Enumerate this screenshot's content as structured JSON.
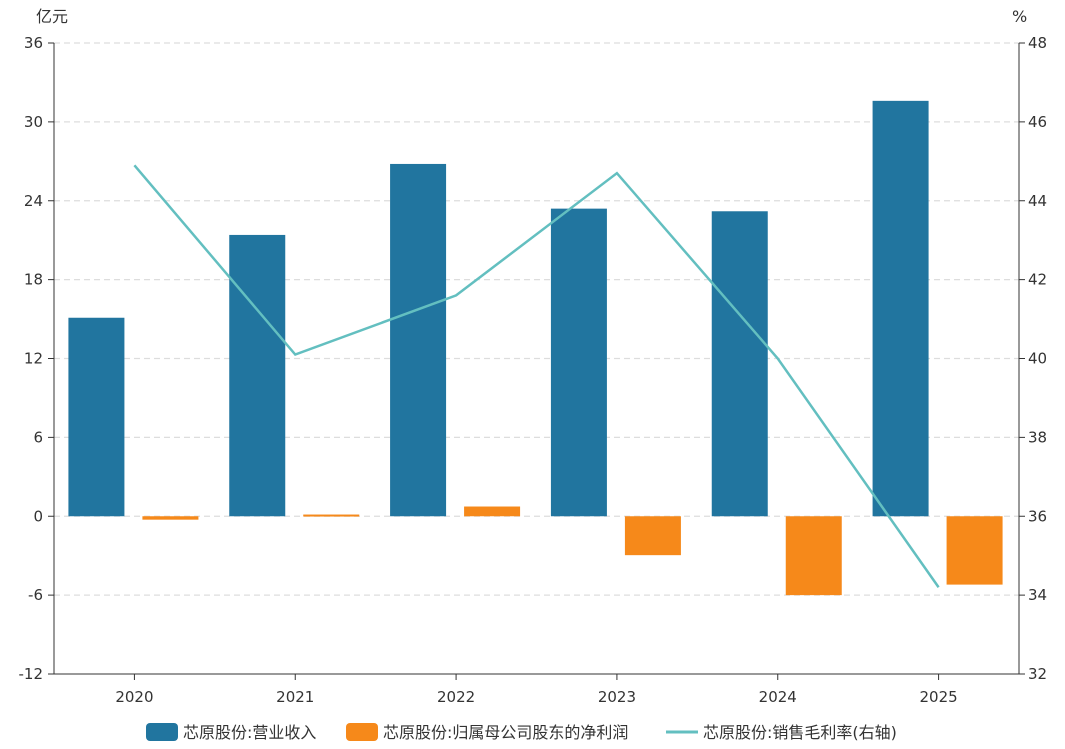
{
  "chart_data": {
    "type": "bar",
    "categories": [
      "2020",
      "2021",
      "2022",
      "2023",
      "2024",
      "2025"
    ],
    "left_axis": {
      "unit": "亿元",
      "ylim": [
        -12,
        36
      ],
      "ticks": [
        -12,
        -6,
        0,
        6,
        12,
        18,
        24,
        30,
        36
      ]
    },
    "right_axis": {
      "unit": "%",
      "ylim": [
        32,
        48
      ],
      "ticks": [
        32,
        34,
        36,
        38,
        40,
        42,
        44,
        46,
        48
      ]
    },
    "series": [
      {
        "name": "芯原股份:营业收入",
        "type": "bar",
        "axis": "left",
        "color": "#21759f",
        "values": [
          15.1,
          21.4,
          26.8,
          23.4,
          23.2,
          31.6
        ]
      },
      {
        "name": "芯原股份:归属母公司股东的净利润",
        "type": "bar",
        "axis": "left",
        "color": "#f6891a",
        "values": [
          -0.26,
          0.13,
          0.74,
          -2.96,
          -6.0,
          -5.2
        ]
      },
      {
        "name": "芯原股份:销售毛利率(右轴)",
        "type": "line",
        "axis": "right",
        "color": "#63bfc0",
        "values": [
          44.9,
          40.1,
          41.6,
          44.7,
          40.0,
          34.2
        ]
      }
    ],
    "grid": true,
    "legend_position": "bottom"
  }
}
